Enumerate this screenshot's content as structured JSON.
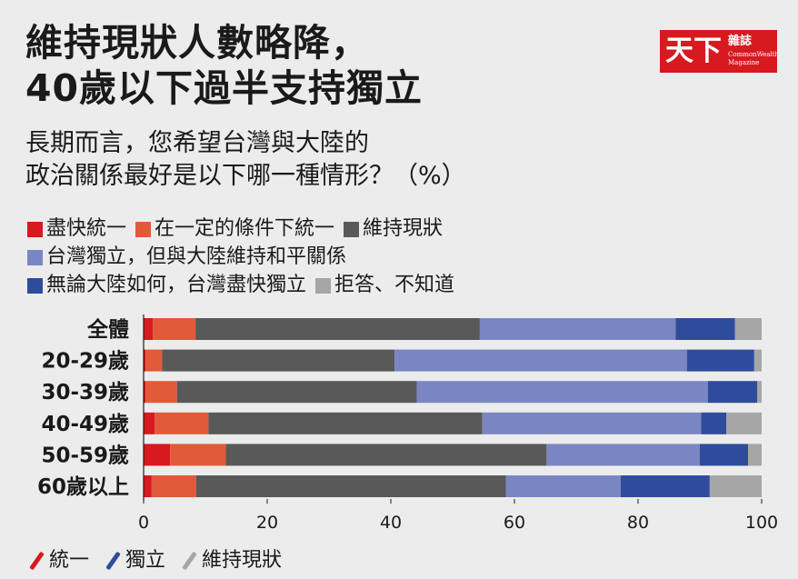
{
  "title_line1": "維持現狀人數略降，",
  "title_line2": "40歲以下過半支持獨立",
  "subtitle_line1": "長期而言，您希望台灣與大陸的",
  "subtitle_line2": "政治關係最好是以下哪一種情形？（%）",
  "logo": {
    "main": "天下",
    "sub": "雜誌",
    "en1": "CommonWealth",
    "en2": "Magazine"
  },
  "legend_rows": [
    [
      {
        "label": "盡快統一",
        "color": "#d71920"
      },
      {
        "label": "在一定的條件下統一",
        "color": "#e05a3a"
      },
      {
        "label": "維持現狀",
        "color": "#595959"
      }
    ],
    [
      {
        "label": "台灣獨立，但與大陸維持和平關係",
        "color": "#7a86c2"
      }
    ],
    [
      {
        "label": "無論大陸如何，台灣盡快獨立",
        "color": "#2f4c9c"
      },
      {
        "label": "拒答、不知道",
        "color": "#a6a6a6"
      }
    ]
  ],
  "bottom_legend": [
    {
      "label": "統一",
      "color": "#d71920"
    },
    {
      "label": "獨立",
      "color": "#2f4c9c"
    },
    {
      "label": "維持現狀",
      "color": "#a6a6a6"
    }
  ],
  "chart_data": {
    "type": "bar",
    "orientation": "horizontal",
    "stacked": true,
    "xlim": [
      0,
      100
    ],
    "xticks": [
      0,
      20,
      40,
      60,
      80,
      100
    ],
    "categories": [
      "全體",
      "20-29歲",
      "30-39歲",
      "40-49歲",
      "50-59歲",
      "60歲以上"
    ],
    "series": [
      {
        "name": "盡快統一",
        "color": "#d71920",
        "values": [
          1.5,
          0.3,
          0.3,
          1.8,
          4.3,
          1.3
        ]
      },
      {
        "name": "在一定的條件下統一",
        "color": "#e05a3a",
        "values": [
          6.9,
          2.7,
          5.1,
          8.7,
          9.0,
          7.2
        ]
      },
      {
        "name": "維持現狀",
        "color": "#595959",
        "values": [
          46.0,
          37.6,
          38.8,
          44.3,
          51.9,
          50.1
        ]
      },
      {
        "name": "台灣獨立，但與大陸維持和平關係",
        "color": "#7a86c2",
        "values": [
          31.7,
          47.3,
          47.1,
          35.4,
          24.8,
          18.6
        ]
      },
      {
        "name": "無論大陸如何，台灣盡快獨立",
        "color": "#2f4c9c",
        "values": [
          9.6,
          10.9,
          8.0,
          4.1,
          7.8,
          14.4
        ]
      },
      {
        "name": "拒答、不知道",
        "color": "#a6a6a6",
        "values": [
          4.3,
          1.2,
          0.7,
          5.7,
          2.2,
          8.4
        ]
      }
    ]
  }
}
